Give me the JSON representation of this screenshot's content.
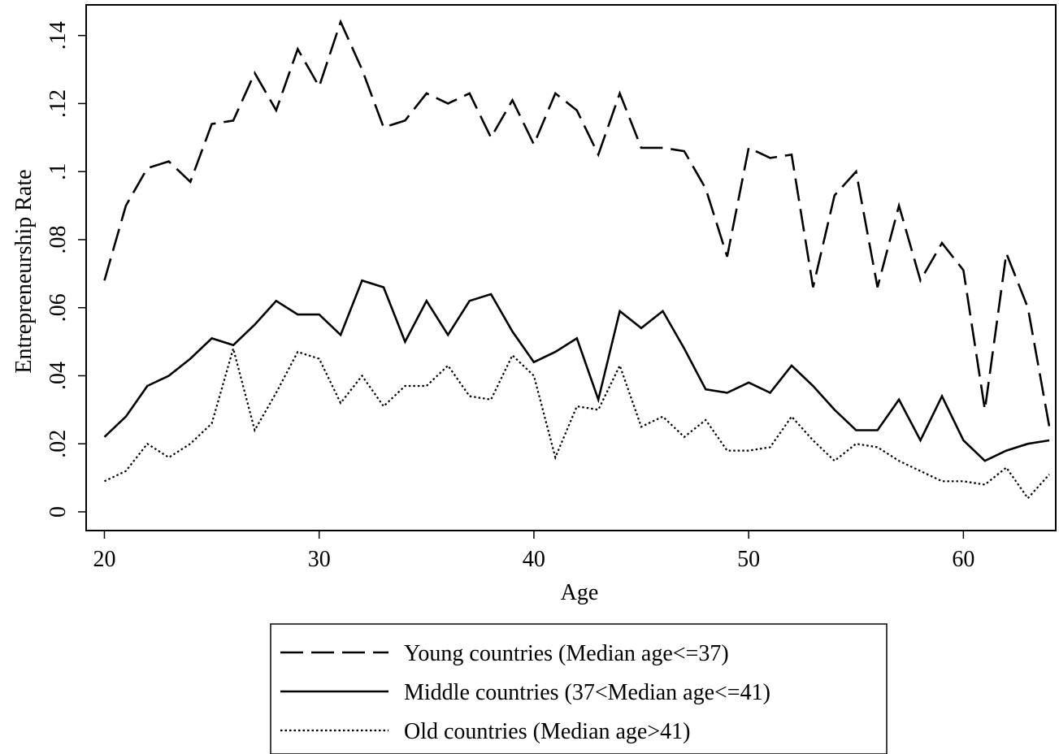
{
  "chart_data": {
    "type": "line",
    "title": "",
    "xlabel": "Age",
    "ylabel": "Entrepreneurship Rate",
    "xlim": [
      19.15,
      64.3
    ],
    "ylim": [
      -0.0055,
      0.149
    ],
    "x_ticks": [
      20,
      30,
      40,
      50,
      60
    ],
    "x_tick_labels": [
      "20",
      "30",
      "40",
      "50",
      "60"
    ],
    "y_ticks": [
      0,
      0.02,
      0.04,
      0.06,
      0.08,
      0.1,
      0.12,
      0.14
    ],
    "y_tick_labels": [
      "0",
      ".02",
      ".04",
      ".06",
      ".08",
      ".1",
      ".12",
      ".14"
    ],
    "grid": false,
    "legend_position": "bottom",
    "x": [
      20,
      21,
      22,
      23,
      24,
      25,
      26,
      27,
      28,
      29,
      30,
      31,
      32,
      33,
      34,
      35,
      36,
      37,
      38,
      39,
      40,
      41,
      42,
      43,
      44,
      45,
      46,
      47,
      48,
      49,
      50,
      51,
      52,
      53,
      54,
      55,
      56,
      57,
      58,
      59,
      60,
      61,
      62,
      63,
      64
    ],
    "series": [
      {
        "name": "Young countries (Median age<=37)",
        "line_style": "dashed",
        "color": "#000000",
        "values": [
          0.068,
          0.09,
          0.101,
          0.103,
          0.097,
          0.114,
          0.115,
          0.129,
          0.118,
          0.136,
          0.125,
          0.144,
          0.13,
          0.113,
          0.115,
          0.123,
          0.12,
          0.123,
          0.11,
          0.121,
          0.108,
          0.123,
          0.118,
          0.105,
          0.123,
          0.107,
          0.107,
          0.106,
          0.095,
          0.075,
          0.107,
          0.104,
          0.105,
          0.066,
          0.093,
          0.1,
          0.066,
          0.09,
          0.068,
          0.079,
          0.071,
          0.03,
          0.076,
          0.06,
          0.025
        ]
      },
      {
        "name": "Middle countries (37<Median age<=41)",
        "line_style": "solid",
        "color": "#000000",
        "values": [
          0.022,
          0.028,
          0.037,
          0.04,
          0.045,
          0.051,
          0.049,
          0.055,
          0.062,
          0.058,
          0.058,
          0.052,
          0.068,
          0.066,
          0.05,
          0.062,
          0.052,
          0.062,
          0.064,
          0.053,
          0.044,
          0.047,
          0.051,
          0.033,
          0.059,
          0.054,
          0.059,
          0.048,
          0.036,
          0.035,
          0.038,
          0.035,
          0.043,
          0.037,
          0.03,
          0.024,
          0.024,
          0.033,
          0.021,
          0.034,
          0.021,
          0.015,
          0.018,
          0.02,
          0.021
        ]
      },
      {
        "name": "Old countries (Median age>41)",
        "line_style": "dotted",
        "color": "#000000",
        "values": [
          0.009,
          0.012,
          0.02,
          0.016,
          0.02,
          0.026,
          0.048,
          0.024,
          0.035,
          0.047,
          0.045,
          0.032,
          0.04,
          0.031,
          0.037,
          0.037,
          0.043,
          0.034,
          0.033,
          0.046,
          0.04,
          0.016,
          0.031,
          0.03,
          0.043,
          0.025,
          0.028,
          0.022,
          0.027,
          0.018,
          0.018,
          0.019,
          0.028,
          0.021,
          0.015,
          0.02,
          0.019,
          0.015,
          0.012,
          0.009,
          0.009,
          0.008,
          0.013,
          0.004,
          0.011
        ]
      }
    ]
  }
}
